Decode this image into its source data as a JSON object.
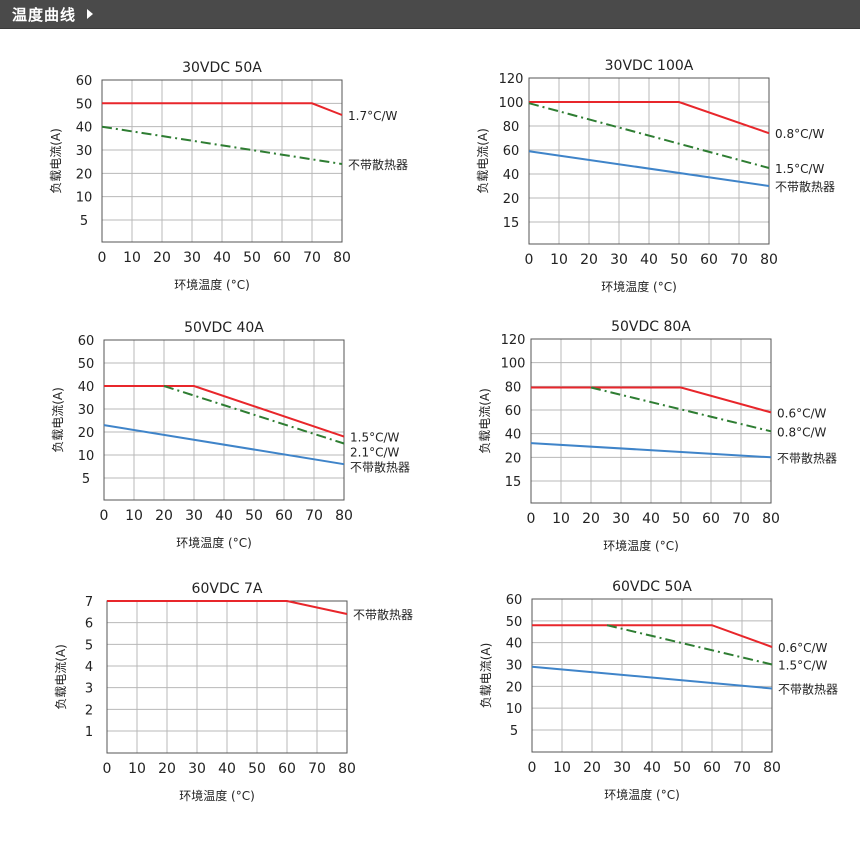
{
  "header": {
    "title": "温度曲线"
  },
  "colors": {
    "derating": "#e8262b",
    "heatsink": "#2e7d32",
    "no_heatsink": "#3f84c9",
    "grid": "#b8b8b8",
    "axis": "#555555"
  },
  "chart_data": [
    {
      "type": "line",
      "title": "30VDC 50A",
      "xlabel": "环境温度 (°C)",
      "ylabel": "负载电流(A)",
      "xlim": [
        0,
        80
      ],
      "ylim": [
        0,
        60
      ],
      "x_ticks": [
        0,
        10,
        20,
        30,
        40,
        50,
        60,
        70,
        80
      ],
      "y_ticks": [
        5,
        10,
        20,
        30,
        40,
        50,
        60
      ],
      "series": [
        {
          "name": "1.7°C/W",
          "style": "solid",
          "color": "red",
          "points": [
            [
              0,
              50
            ],
            [
              70,
              50
            ],
            [
              80,
              45
            ]
          ]
        },
        {
          "name": "不带散热器",
          "style": "dashdot",
          "color": "green",
          "points": [
            [
              0,
              40
            ],
            [
              80,
              24
            ]
          ]
        }
      ]
    },
    {
      "type": "line",
      "title": "30VDC 100A",
      "xlabel": "环境温度 (°C)",
      "ylabel": "负载电流(A)",
      "xlim": [
        0,
        80
      ],
      "ylim": [
        0,
        120
      ],
      "x_ticks": [
        0,
        10,
        20,
        30,
        40,
        50,
        60,
        70,
        80
      ],
      "y_ticks": [
        15,
        20,
        40,
        60,
        80,
        100,
        120
      ],
      "series": [
        {
          "name": "0.8°C/W",
          "style": "solid",
          "color": "red",
          "points": [
            [
              0,
              100
            ],
            [
              50,
              100
            ],
            [
              80,
              74
            ]
          ]
        },
        {
          "name": "1.5°C/W",
          "style": "dashdot",
          "color": "green",
          "points": [
            [
              0,
              99
            ],
            [
              80,
              45
            ]
          ]
        },
        {
          "name": "不带散热器",
          "style": "solid",
          "color": "blue",
          "points": [
            [
              0,
              59
            ],
            [
              80,
              30
            ]
          ]
        }
      ]
    },
    {
      "type": "line",
      "title": "50VDC 40A",
      "xlabel": "环境温度 (°C)",
      "ylabel": "负载电流(A)",
      "xlim": [
        0,
        80
      ],
      "ylim": [
        0,
        60
      ],
      "x_ticks": [
        0,
        10,
        20,
        30,
        40,
        50,
        60,
        70,
        80
      ],
      "y_ticks": [
        5,
        10,
        20,
        30,
        40,
        50,
        60
      ],
      "series": [
        {
          "name": "1.5°C/W",
          "style": "solid",
          "color": "red",
          "points": [
            [
              0,
              40
            ],
            [
              30,
              40
            ],
            [
              80,
              18
            ]
          ]
        },
        {
          "name": "2.1°C/W",
          "style": "dashdot",
          "color": "green",
          "points": [
            [
              20,
              40
            ],
            [
              80,
              15
            ]
          ]
        },
        {
          "name": "不带散热器",
          "style": "solid",
          "color": "blue",
          "points": [
            [
              0,
              23
            ],
            [
              80,
              8
            ]
          ]
        }
      ]
    },
    {
      "type": "line",
      "title": "50VDC 80A",
      "xlabel": "环境温度 (°C)",
      "ylabel": "负载电流(A)",
      "xlim": [
        0,
        80
      ],
      "ylim": [
        0,
        120
      ],
      "x_ticks": [
        0,
        10,
        20,
        30,
        40,
        50,
        60,
        70,
        80
      ],
      "y_ticks": [
        15,
        20,
        40,
        60,
        80,
        100,
        120
      ],
      "series": [
        {
          "name": "0.6°C/W",
          "style": "solid",
          "color": "red",
          "points": [
            [
              0,
              79
            ],
            [
              50,
              79
            ],
            [
              80,
              58
            ]
          ]
        },
        {
          "name": "0.8°C/W",
          "style": "dashdot",
          "color": "green",
          "points": [
            [
              20,
              79
            ],
            [
              80,
              42
            ]
          ]
        },
        {
          "name": "不带散热器",
          "style": "solid",
          "color": "blue",
          "points": [
            [
              0,
              32
            ],
            [
              80,
              20
            ]
          ]
        }
      ]
    },
    {
      "type": "line",
      "title": "60VDC 7A",
      "xlabel": "环境温度 (°C)",
      "ylabel": "负载电流(A)",
      "xlim": [
        0,
        80
      ],
      "ylim": [
        0,
        7
      ],
      "x_ticks": [
        0,
        10,
        20,
        30,
        40,
        50,
        60,
        70,
        80
      ],
      "y_ticks": [
        1,
        2,
        3,
        4,
        5,
        6,
        7
      ],
      "series": [
        {
          "name": "不带散热器",
          "style": "solid",
          "color": "red",
          "points": [
            [
              0,
              7
            ],
            [
              60,
              7
            ],
            [
              80,
              6.4
            ]
          ]
        }
      ]
    },
    {
      "type": "line",
      "title": "60VDC 50A",
      "xlabel": "环境温度 (°C)",
      "ylabel": "负载电流(A)",
      "xlim": [
        0,
        80
      ],
      "ylim": [
        0,
        60
      ],
      "x_ticks": [
        0,
        10,
        20,
        30,
        40,
        50,
        60,
        70,
        80
      ],
      "y_ticks": [
        5,
        10,
        20,
        30,
        40,
        50,
        60
      ],
      "series": [
        {
          "name": "0.6°C/W",
          "style": "solid",
          "color": "red",
          "points": [
            [
              0,
              48
            ],
            [
              60,
              48
            ],
            [
              80,
              38
            ]
          ]
        },
        {
          "name": "1.5°C/W",
          "style": "dashdot",
          "color": "green",
          "points": [
            [
              25,
              48
            ],
            [
              80,
              30
            ]
          ]
        },
        {
          "name": "不带散热器",
          "style": "solid",
          "color": "blue",
          "points": [
            [
              0,
              29
            ],
            [
              80,
              19
            ]
          ]
        }
      ]
    }
  ]
}
